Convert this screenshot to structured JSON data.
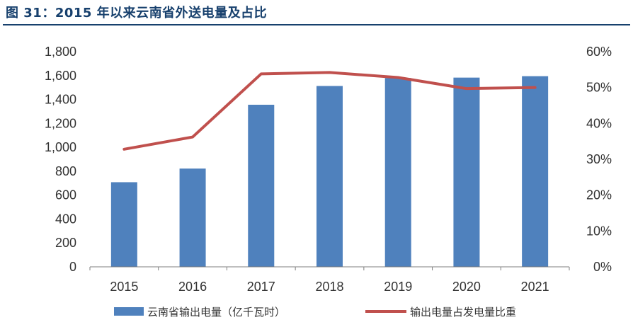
{
  "figure": {
    "title": "图 31：2015 年以来云南省外送电量及占比"
  },
  "chart_data": {
    "type": "bar",
    "categories": [
      "2015",
      "2016",
      "2017",
      "2018",
      "2019",
      "2020",
      "2021"
    ],
    "series": [
      {
        "name": "云南省输出电量（亿千瓦时）",
        "kind": "bar",
        "axis": "left",
        "color": "#4f81bd",
        "values": [
          708,
          822,
          1356,
          1513,
          1580,
          1583,
          1595
        ]
      },
      {
        "name": "输出电量占发电量比重",
        "kind": "line",
        "axis": "right",
        "color": "#c0504d",
        "values": [
          0.328,
          0.362,
          0.538,
          0.542,
          0.528,
          0.497,
          0.5
        ]
      }
    ],
    "y_left": {
      "range": [
        0,
        1800
      ],
      "ticks": [
        "0",
        "200",
        "400",
        "600",
        "800",
        "1,000",
        "1,200",
        "1,400",
        "1,600",
        "1,800"
      ]
    },
    "y_right": {
      "range": [
        0,
        0.6
      ],
      "ticks": [
        "0%",
        "10%",
        "20%",
        "30%",
        "40%",
        "50%",
        "60%"
      ]
    },
    "grid": false,
    "legend_position": "bottom"
  }
}
